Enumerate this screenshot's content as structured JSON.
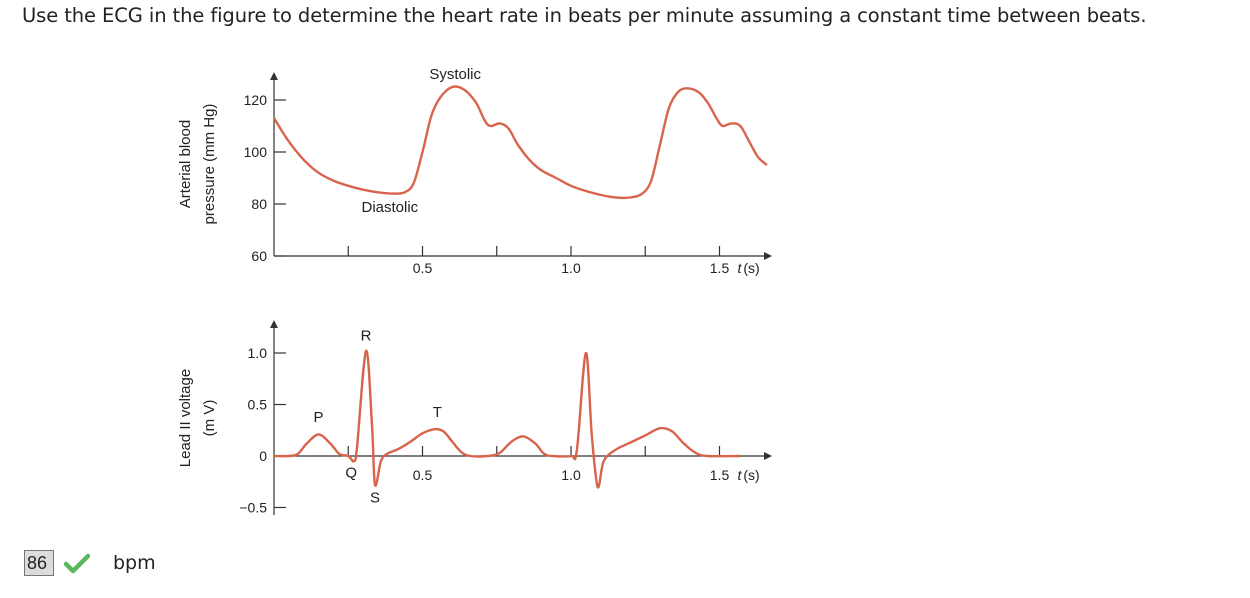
{
  "question": {
    "text": "Use the ECG in the figure to determine the heart rate in beats per minute assuming a constant time between beats."
  },
  "answer": {
    "value": "86",
    "status": "correct",
    "status_icon": "check-icon",
    "check_color": "#5cb85c",
    "unit": "bpm"
  },
  "chart_data": [
    {
      "type": "line",
      "name": "arterial-pressure",
      "ylabel_line1": "Arterial blood",
      "ylabel_line2": "pressure (mm Hg)",
      "xlabel": "t (s)",
      "xlabel_italic": "t",
      "xlabel_rest": "(s)",
      "xlim": [
        0,
        1.7
      ],
      "ylim": [
        60,
        130
      ],
      "x_ticks": [
        0.25,
        0.5,
        0.75,
        1.0,
        1.25,
        1.5
      ],
      "x_tick_labels": [
        {
          "x": 0.5,
          "label": "0.5"
        },
        {
          "x": 1.0,
          "label": "1.0"
        },
        {
          "x": 1.5,
          "label": "1.5"
        }
      ],
      "y_ticks": [
        {
          "y": 60,
          "label": "60"
        },
        {
          "y": 80,
          "label": "80"
        },
        {
          "y": 100,
          "label": "100"
        },
        {
          "y": 120,
          "label": "120"
        }
      ],
      "line_color": "#d9644d",
      "annotations": [
        {
          "text": "Systolic",
          "x": 0.61,
          "y": 128
        },
        {
          "text": "Diastolic",
          "x": 0.39,
          "y": 77
        }
      ],
      "points": [
        [
          0.0,
          113
        ],
        [
          0.05,
          104
        ],
        [
          0.1,
          97
        ],
        [
          0.15,
          92
        ],
        [
          0.2,
          89
        ],
        [
          0.25,
          87
        ],
        [
          0.3,
          85.5
        ],
        [
          0.35,
          84.5
        ],
        [
          0.4,
          84
        ],
        [
          0.44,
          84.5
        ],
        [
          0.47,
          88
        ],
        [
          0.5,
          100
        ],
        [
          0.53,
          114
        ],
        [
          0.56,
          121
        ],
        [
          0.6,
          125
        ],
        [
          0.64,
          124
        ],
        [
          0.68,
          119
        ],
        [
          0.71,
          112
        ],
        [
          0.73,
          110
        ],
        [
          0.76,
          111
        ],
        [
          0.79,
          109
        ],
        [
          0.82,
          103
        ],
        [
          0.86,
          97
        ],
        [
          0.9,
          93
        ],
        [
          0.95,
          90
        ],
        [
          1.0,
          87
        ],
        [
          1.05,
          85
        ],
        [
          1.1,
          83.5
        ],
        [
          1.15,
          82.5
        ],
        [
          1.2,
          82.5
        ],
        [
          1.24,
          84
        ],
        [
          1.27,
          89
        ],
        [
          1.3,
          103
        ],
        [
          1.33,
          117
        ],
        [
          1.36,
          123
        ],
        [
          1.39,
          124.5
        ],
        [
          1.43,
          123
        ],
        [
          1.46,
          119
        ],
        [
          1.49,
          113
        ],
        [
          1.51,
          110
        ],
        [
          1.54,
          111
        ],
        [
          1.57,
          110
        ],
        [
          1.6,
          104
        ],
        [
          1.63,
          98
        ],
        [
          1.66,
          95
        ]
      ]
    },
    {
      "type": "line",
      "name": "lead-ii-voltage",
      "ylabel_line1": "Lead II voltage",
      "ylabel_line2": "(m V)",
      "xlabel": "t (s)",
      "xlabel_italic": "t",
      "xlabel_rest": "(s)",
      "xlim": [
        -0.05,
        1.7
      ],
      "ylim": [
        -0.55,
        1.25
      ],
      "x_ticks": [
        0.25,
        0.5,
        0.75,
        1.0,
        1.25,
        1.5
      ],
      "x_tick_labels": [
        {
          "x": 0.5,
          "label": "0.5"
        },
        {
          "x": 1.0,
          "label": "1.0"
        },
        {
          "x": 1.5,
          "label": "1.5"
        }
      ],
      "y_ticks": [
        {
          "y": -0.5,
          "label": "−0.5"
        },
        {
          "y": 0,
          "label": "0"
        },
        {
          "y": 0.5,
          "label": "0.5"
        },
        {
          "y": 1.0,
          "label": "1.0"
        }
      ],
      "line_color": "#d9644d",
      "wave_labels": [
        {
          "text": "P",
          "x": 0.15,
          "y": 0.33
        },
        {
          "text": "Q",
          "x": 0.26,
          "y": -0.21
        },
        {
          "text": "R",
          "x": 0.31,
          "y": 1.12
        },
        {
          "text": "S",
          "x": 0.34,
          "y": -0.45
        },
        {
          "text": "T",
          "x": 0.55,
          "y": 0.38
        }
      ],
      "points": [
        [
          0.0,
          0
        ],
        [
          0.05,
          0.0
        ],
        [
          0.08,
          0.02
        ],
        [
          0.11,
          0.12
        ],
        [
          0.15,
          0.21
        ],
        [
          0.19,
          0.12
        ],
        [
          0.22,
          0.02
        ],
        [
          0.25,
          0.0
        ],
        [
          0.27,
          -0.05
        ],
        [
          0.28,
          0.1
        ],
        [
          0.31,
          1.02
        ],
        [
          0.33,
          0.3
        ],
        [
          0.34,
          -0.28
        ],
        [
          0.36,
          -0.05
        ],
        [
          0.38,
          0.02
        ],
        [
          0.42,
          0.07
        ],
        [
          0.46,
          0.14
        ],
        [
          0.5,
          0.22
        ],
        [
          0.54,
          0.26
        ],
        [
          0.57,
          0.24
        ],
        [
          0.6,
          0.14
        ],
        [
          0.63,
          0.04
        ],
        [
          0.66,
          0.0
        ],
        [
          0.72,
          0.0
        ],
        [
          0.76,
          0.03
        ],
        [
          0.8,
          0.14
        ],
        [
          0.84,
          0.19
        ],
        [
          0.88,
          0.12
        ],
        [
          0.91,
          0.02
        ],
        [
          0.94,
          0.0
        ],
        [
          1.0,
          0.0
        ],
        [
          1.02,
          0.06
        ],
        [
          1.05,
          1.0
        ],
        [
          1.07,
          0.2
        ],
        [
          1.09,
          -0.3
        ],
        [
          1.11,
          -0.05
        ],
        [
          1.15,
          0.06
        ],
        [
          1.2,
          0.13
        ],
        [
          1.25,
          0.2
        ],
        [
          1.3,
          0.27
        ],
        [
          1.34,
          0.24
        ],
        [
          1.38,
          0.12
        ],
        [
          1.42,
          0.03
        ],
        [
          1.46,
          0.0
        ],
        [
          1.57,
          0.0
        ]
      ]
    }
  ]
}
